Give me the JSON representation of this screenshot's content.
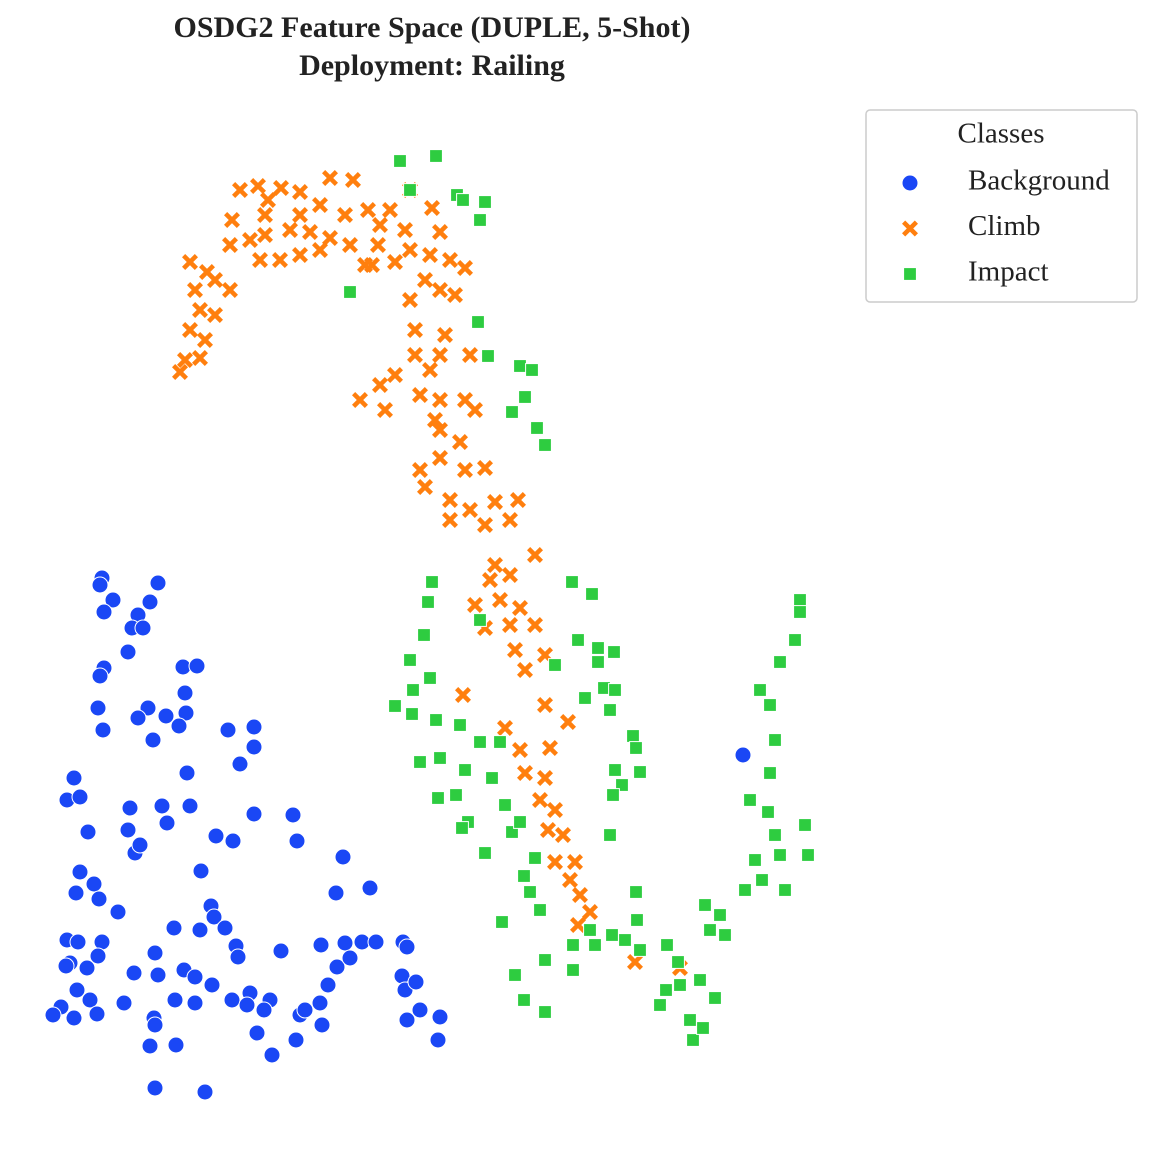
{
  "chart_data": {
    "type": "scatter",
    "title": "OSDG2 Feature Space (DUPLE, 5-Shot)",
    "subtitle": "Deployment: Railing",
    "legend_title": "Classes",
    "legend_position": "upper right outside",
    "xlim": [
      40,
      820
    ],
    "ylim": [
      1110,
      140
    ],
    "series": [
      {
        "name": "Background",
        "color": "#1a47f5",
        "marker": "circle",
        "x": [
          102,
          100,
          113,
          104,
          158,
          150,
          138,
          132,
          143,
          128,
          104,
          100,
          183,
          197,
          185,
          98,
          103,
          148,
          138,
          166,
          186,
          179,
          153,
          228,
          254,
          254,
          240,
          187,
          74,
          67,
          80,
          130,
          162,
          190,
          216,
          233,
          254,
          293,
          297,
          128,
          88,
          135,
          140,
          167,
          343,
          80,
          94,
          99,
          118,
          76,
          201,
          211,
          214,
          200,
          225,
          236,
          238,
          174,
          370,
          336,
          67,
          78,
          102,
          98,
          70,
          87,
          66,
          77,
          90,
          61,
          53,
          74,
          97,
          124,
          134,
          155,
          158,
          184,
          195,
          212,
          175,
          154,
          155,
          150,
          176,
          195,
          232,
          250,
          247,
          270,
          257,
          264,
          272,
          296,
          300,
          305,
          320,
          328,
          337,
          321,
          345,
          362,
          376,
          350,
          403,
          407,
          402,
          405,
          416,
          420,
          407,
          440,
          438,
          155,
          205,
          281,
          322,
          743
        ],
        "values": [
          578,
          585,
          600,
          612,
          583,
          602,
          615,
          628,
          628,
          652,
          668,
          676,
          667,
          666,
          693,
          708,
          730,
          708,
          718,
          716,
          713,
          726,
          740,
          730,
          727,
          747,
          764,
          773,
          778,
          800,
          797,
          808,
          806,
          806,
          836,
          841,
          814,
          815,
          841,
          830,
          832,
          853,
          845,
          823,
          857,
          872,
          884,
          899,
          912,
          893,
          871,
          906,
          917,
          930,
          928,
          946,
          957,
          928,
          888,
          893,
          940,
          942,
          942,
          956,
          963,
          968,
          966,
          990,
          1000,
          1007,
          1015,
          1018,
          1014,
          1003,
          973,
          953,
          975,
          970,
          977,
          985,
          1000,
          1018,
          1025,
          1046,
          1045,
          1003,
          1000,
          993,
          1005,
          1000,
          1033,
          1010,
          1055,
          1040,
          1015,
          1010,
          1003,
          985,
          967,
          945,
          943,
          942,
          942,
          958,
          942,
          947,
          976,
          990,
          982,
          1010,
          1020,
          1017,
          1040,
          1088,
          1092,
          951,
          1025,
          755
        ]
      },
      {
        "name": "Climb",
        "color": "#ff7f0e",
        "marker": "x",
        "x": [
          240,
          258,
          281,
          300,
          330,
          353,
          232,
          268,
          265,
          300,
          320,
          345,
          368,
          390,
          410,
          432,
          380,
          405,
          440,
          190,
          207,
          230,
          250,
          265,
          290,
          310,
          330,
          350,
          260,
          280,
          300,
          320,
          372,
          395,
          410,
          430,
          450,
          465,
          195,
          230,
          215,
          200,
          215,
          190,
          205,
          185,
          200,
          180,
          410,
          440,
          455,
          415,
          445,
          415,
          440,
          470,
          380,
          395,
          430,
          360,
          385,
          420,
          440,
          465,
          475,
          435,
          460,
          440,
          420,
          440,
          465,
          485,
          425,
          450,
          470,
          495,
          518,
          485,
          510,
          450,
          535,
          495,
          490,
          510,
          475,
          500,
          520,
          485,
          510,
          535,
          515,
          545,
          525,
          463,
          545,
          505,
          568,
          520,
          550,
          525,
          545,
          540,
          555,
          548,
          563,
          555,
          575,
          570,
          580,
          590,
          578,
          635,
          680,
          365,
          378,
          425
        ],
        "values": [
          190,
          186,
          188,
          192,
          178,
          180,
          220,
          200,
          215,
          215,
          205,
          215,
          210,
          210,
          190,
          208,
          225,
          230,
          232,
          262,
          272,
          245,
          240,
          235,
          230,
          232,
          238,
          245,
          260,
          260,
          255,
          250,
          265,
          262,
          250,
          255,
          260,
          268,
          290,
          290,
          280,
          310,
          315,
          330,
          340,
          360,
          358,
          372,
          300,
          290,
          295,
          330,
          335,
          355,
          355,
          355,
          385,
          375,
          370,
          400,
          410,
          395,
          400,
          400,
          410,
          420,
          442,
          430,
          470,
          458,
          470,
          468,
          487,
          500,
          510,
          502,
          500,
          525,
          520,
          520,
          555,
          565,
          580,
          575,
          605,
          600,
          608,
          628,
          625,
          625,
          650,
          655,
          670,
          695,
          705,
          728,
          722,
          750,
          748,
          773,
          778,
          800,
          810,
          830,
          835,
          862,
          862,
          880,
          895,
          912,
          925,
          962,
          968,
          265,
          245,
          280
        ]
      },
      {
        "name": "Impact",
        "color": "#2ecc40",
        "marker": "square",
        "x": [
          400,
          436,
          410,
          457,
          463,
          485,
          480,
          350,
          478,
          488,
          520,
          532,
          525,
          512,
          537,
          545,
          432,
          428,
          572,
          592,
          424,
          480,
          578,
          598,
          614,
          598,
          410,
          430,
          413,
          555,
          604,
          615,
          395,
          412,
          436,
          460,
          585,
          610,
          440,
          420,
          465,
          492,
          480,
          500,
          633,
          636,
          615,
          640,
          622,
          613,
          438,
          456,
          505,
          468,
          462,
          485,
          512,
          520,
          535,
          610,
          524,
          530,
          540,
          502,
          636,
          637,
          590,
          612,
          625,
          667,
          573,
          545,
          515,
          573,
          524,
          545,
          666,
          680,
          700,
          715,
          690,
          693,
          703,
          660,
          800,
          800,
          795,
          780,
          760,
          770,
          775,
          770,
          750,
          768,
          775,
          805,
          808,
          785,
          762,
          745,
          720,
          725,
          710,
          705,
          755,
          780,
          678,
          640,
          595
        ],
        "values": [
          161,
          156,
          190,
          195,
          200,
          202,
          220,
          292,
          322,
          356,
          366,
          370,
          397,
          412,
          428,
          445,
          582,
          602,
          582,
          594,
          635,
          620,
          640,
          648,
          652,
          662,
          660,
          678,
          690,
          665,
          688,
          690,
          706,
          714,
          720,
          725,
          698,
          710,
          758,
          762,
          770,
          778,
          742,
          742,
          736,
          748,
          770,
          772,
          785,
          795,
          798,
          795,
          805,
          822,
          828,
          853,
          832,
          822,
          858,
          835,
          876,
          892,
          910,
          922,
          892,
          920,
          930,
          935,
          940,
          945,
          945,
          960,
          975,
          970,
          1000,
          1012,
          990,
          985,
          980,
          998,
          1020,
          1040,
          1028,
          1005,
          600,
          612,
          640,
          662,
          690,
          705,
          740,
          773,
          800,
          812,
          835,
          825,
          855,
          890,
          880,
          890,
          915,
          935,
          930,
          905,
          860,
          855,
          962,
          950,
          945
        ]
      }
    ]
  }
}
